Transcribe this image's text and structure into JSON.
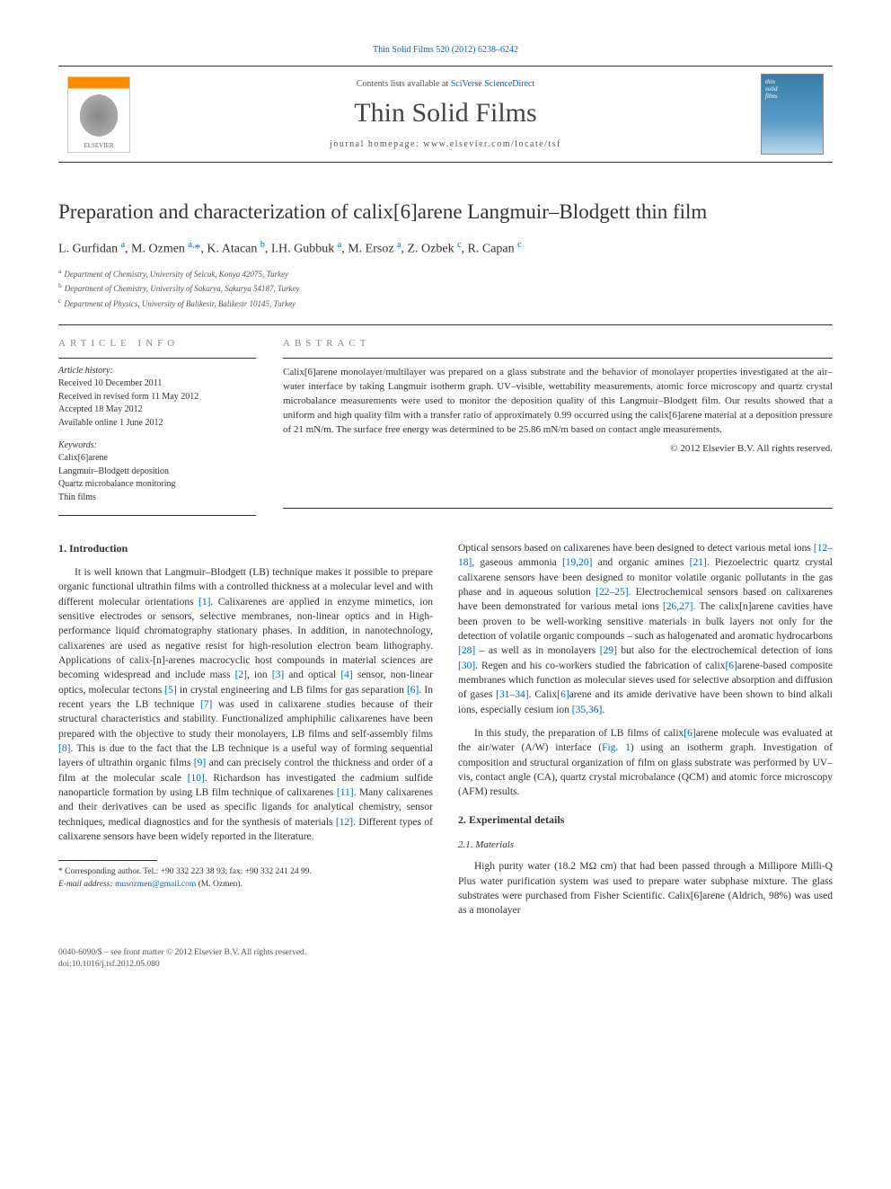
{
  "journal_header_link": "Thin Solid Films 520 (2012) 6238–6242",
  "header": {
    "contents_prefix": "Contents lists available at ",
    "contents_link": "SciVerse ScienceDirect",
    "journal_name": "Thin Solid Films",
    "homepage_label": "journal homepage: www.elsevier.com/locate/tsf",
    "publisher": "ELSEVIER",
    "cover_text_1": "thin",
    "cover_text_2": "solid",
    "cover_text_3": "films"
  },
  "article": {
    "title": "Preparation and characterization of calix[6]arene Langmuir–Blodgett thin film",
    "authors_html": "L. Gurfidan <sup>a</sup>, M. Ozmen <sup>a,</sup><span class='star'>*</span>, K. Atacan <sup>b</sup>, I.H. Gubbuk <sup>a</sup>, M. Ersoz <sup>a</sup>, Z. Ozbek <sup>c</sup>, R. Capan <sup>c</sup>",
    "affiliations": {
      "a": "Department of Chemistry, University of Selcuk, Konya 42075, Turkey",
      "b": "Department of Chemistry, University of Sakarya, Sakarya 54187, Turkey",
      "c": "Department of Physics, University of Balikesir, Balikesir 10145, Turkey"
    }
  },
  "article_info": {
    "heading": "ARTICLE INFO",
    "history_heading": "Article history:",
    "received": "Received 10 December 2011",
    "revised": "Received in revised form 11 May 2012",
    "accepted": "Accepted 18 May 2012",
    "online": "Available online 1 June 2012",
    "keywords_heading": "Keywords:",
    "keywords": [
      "Calix[6]arene",
      "Langmuir–Blodgett deposition",
      "Quartz microbalance monitoring",
      "Thin films"
    ]
  },
  "abstract": {
    "heading": "ABSTRACT",
    "text": "Calix[6]arene monolayer/multilayer was prepared on a glass substrate and the behavior of monolayer properties investigated at the air–water interface by taking Langmuir isotherm graph. UV–visible, wettability measurements, atomic force microscopy and quartz crystal microbalance measurements were used to monitor the deposition quality of this Langmuir–Blodgett film. Our results showed that a uniform and high quality film with a transfer ratio of approximately 0.99 occurred using the calix[6]arene material at a deposition pressure of 21 mN/m. The surface free energy was determined to be 25.86 mN/m based on contact angle measurements.",
    "copyright": "© 2012 Elsevier B.V. All rights reserved."
  },
  "body": {
    "section1_heading": "1. Introduction",
    "col1_p1": "It is well known that Langmuir–Blodgett (LB) technique makes it possible to prepare organic functional ultrathin films with a controlled thickness at a molecular level and with different molecular orientations [1]. Calixarenes are applied in enzyme mimetics, ion sensitive electrodes or sensors, selective membranes, non-linear optics and in High-performance liquid chromatography stationary phases. In addition, in nanotechnology, calixarenes are used as negative resist for high-resolution electron beam lithography. Applications of calix-[n]-arenes macrocyclic host compounds in material sciences are becoming widespread and include mass [2], ion [3] and optical [4] sensor, non-linear optics, molecular tectons [5] in crystal engineering and LB films for gas separation [6]. In recent years the LB technique [7] was used in calixarene studies because of their structural characteristics and stability. Functionalized amphiphilic calixarenes have been prepared with the objective to study their monolayers, LB films and self-assembly films [8]. This is due to the fact that the LB technique is a useful way of forming sequential layers of ultrathin organic films [9] and can precisely control the thickness and order of a film at the molecular scale [10]. Richardson has investigated the cadmium sulfide nanoparticle formation by using LB film technique of calixarenes [11]. Many calixarenes and their derivatives can be used as specific ligands for analytical chemistry, sensor techniques, medical diagnostics and for the synthesis of materials [12]. Different types of calixarene sensors have been widely reported in the literature.",
    "col2_p1": "Optical sensors based on calixarenes have been designed to detect various metal ions [12–18], gaseous ammonia [19,20] and organic amines [21]. Piezoelectric quartz crystal calixarene sensors have been designed to monitor volatile organic pollutants in the gas phase and in aqueous solution [22–25]. Electrochemical sensors based on calixarenes have been demonstrated for various metal ions [26,27]. The calix[n]arene cavities have been proven to be well-working sensitive materials in bulk layers not only for the detection of volatile organic compounds – such as halogenated and aromatic hydrocarbons [28] – as well as in monolayers [29] but also for the electrochemical detection of ions [30]. Regen and his co-workers studied the fabrication of calix[6]arene-based composite membranes which function as molecular sieves used for selective absorption and diffusion of gases [31–34]. Calix[6]arene and its amide derivative have been shown to bind alkali ions, especially cesium ion [35,36].",
    "col2_p2": "In this study, the preparation of LB films of calix[6]arene molecule was evaluated at the air/water (A/W) interface (Fig. 1) using an isotherm graph. Investigation of composition and structural organization of film on glass substrate was performed by UV–vis, contact angle (CA), quartz crystal microbalance (QCM) and atomic force microscopy (AFM) results.",
    "section2_heading": "2. Experimental details",
    "section21_heading": "2.1. Materials",
    "col2_p3": "High purity water (18.2 MΩ cm) that had been passed through a Millipore Milli-Q Plus water purification system was used to prepare water subphase mixture. The glass substrates were purchased from Fisher Scientific. Calix[6]arene (Aldrich, 98%) was used as a monolayer"
  },
  "footnote": {
    "corr": "* Corresponding author. Tel.: +90 332 223 38 93; fax: +90 332 241 24 99.",
    "email_label": "E-mail address: ",
    "email": "musozmen@gmail.com",
    "email_suffix": " (M. Ozmen)."
  },
  "bottom": {
    "line1": "0040-6090/$ – see front matter © 2012 Elsevier B.V. All rights reserved.",
    "line2": "doi:10.1016/j.tsf.2012.05.080"
  },
  "refs": {
    "r1": "[1]",
    "r2": "[2]",
    "r3": "[3]",
    "r4": "[4]",
    "r5": "[5]",
    "r6": "[6]",
    "r7": "[7]",
    "r8": "[8]",
    "r9": "[9]",
    "r10": "[10]",
    "r11": "[11]",
    "r12": "[12]",
    "r12_18": "[12–18]",
    "r19_20": "[19,20]",
    "r21": "[21]",
    "r22_25": "[22–25]",
    "r26_27": "[26,27]",
    "r28": "[28]",
    "r29": "[29]",
    "r30": "[30]",
    "r31_34": "[31–34]",
    "r35_36": "[35,36]",
    "fig1": "Fig. 1"
  }
}
